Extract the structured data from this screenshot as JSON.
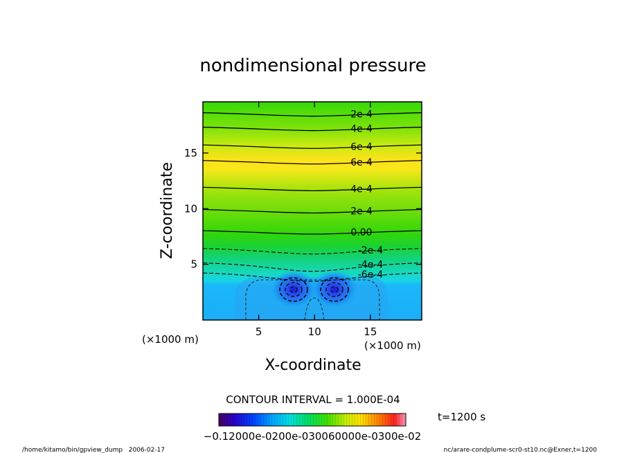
{
  "chart_data": {
    "type": "heatmap",
    "title": "nondimensional pressure",
    "xlabel": "X-coordinate",
    "ylabel": "Z-coordinate",
    "x_unit_label": "(×1000 m)",
    "y_unit_label": "(×1000 m)",
    "xlim": [
      0,
      19.6
    ],
    "ylim": [
      0,
      19.6
    ],
    "x_ticks": [
      5,
      10,
      15
    ],
    "y_ticks": [
      5,
      10,
      15
    ],
    "contour_interval_text": "CONTOUR INTERVAL = 1.000E-04",
    "time_label": "t=1200 s",
    "colorbar_labels_text": "−0.12000e-0200e-030060000e-0300e-02",
    "colorbar_range": [
      -0.0012,
      0.0012
    ],
    "footer_left": "/home/kitamo/bin/gpview_dump   2006-02-17",
    "footer_right": "nc/arare-condplume-scr0-st10.nc@Exner,t=1200",
    "contour_lines": [
      {
        "z": 18.5,
        "label": "2e-4",
        "value": 0.0002,
        "dashed": false
      },
      {
        "z": 17.2,
        "label": "4e-4",
        "value": 0.0004,
        "dashed": false
      },
      {
        "z": 15.6,
        "label": "6e-4",
        "value": 0.0006,
        "dashed": false
      },
      {
        "z": 14.2,
        "label": "6e-4",
        "value": 0.0006,
        "dashed": false
      },
      {
        "z": 11.8,
        "label": "4e-4",
        "value": 0.0004,
        "dashed": false
      },
      {
        "z": 9.8,
        "label": "2e-4",
        "value": 0.0002,
        "dashed": false
      },
      {
        "z": 7.9,
        "label": "0.00",
        "value": 0.0,
        "dashed": false
      },
      {
        "z": 6.3,
        "label": "-2e-4",
        "value": -0.0002,
        "dashed": true
      },
      {
        "z": 5.0,
        "label": "-4e-4",
        "value": -0.0004,
        "dashed": true
      },
      {
        "z": 4.1,
        "label": "-6e-4",
        "value": -0.0006,
        "dashed": true
      }
    ]
  }
}
